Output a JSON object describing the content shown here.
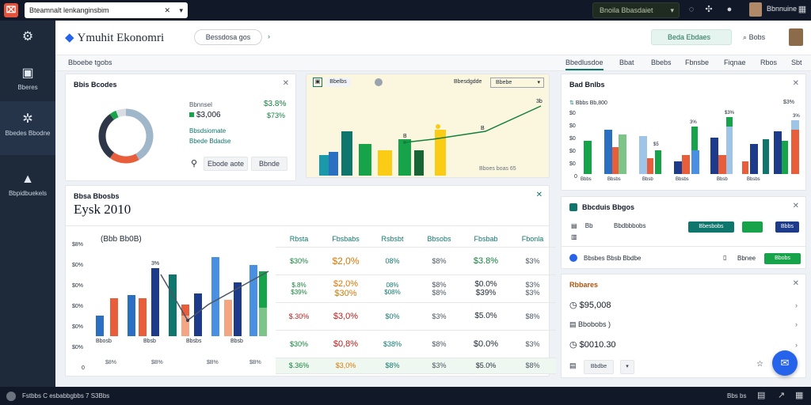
{
  "topbar": {
    "search_value": "Bteamnalt lenkanginsbim",
    "env_pill": "Bnoila Bbasdaiet",
    "user_label": "Bbnnuine"
  },
  "sidebar": {
    "items": [
      {
        "label": ""
      },
      {
        "label": "Bberes"
      },
      {
        "label": "Bbedes Bbodne"
      },
      {
        "label": "Bbpidbuekels"
      }
    ]
  },
  "header": {
    "brand": "Ymuhit Ekonomri",
    "pill": "Bessdosa gos",
    "green_button": "Beda Ebdaes",
    "search_label": "Bobs"
  },
  "crumb": "Bboebe tgobs",
  "tabs": [
    "Bbedlusdoe",
    "Bbat",
    "Bbebs",
    "Fbnsbe",
    "Fiqnae",
    "Rbos",
    "Sbt"
  ],
  "donut_card": {
    "title": "Bbis Bcodes",
    "legend": [
      "Bbnnsel",
      "$3,006",
      "Bbsdsiomate",
      "Bbede Bdadse"
    ],
    "values": [
      "$3.8%",
      "$73%"
    ],
    "button": "Ebode aote",
    "button2": "Bbnde",
    "segments": [
      {
        "value": 42,
        "color": "#9fb7c9"
      },
      {
        "value": 18,
        "color": "#e85d3a"
      },
      {
        "value": 30,
        "color": "#2d3748"
      },
      {
        "value": 4,
        "color": "#16a34a"
      },
      {
        "value": 6,
        "color": "#d9dde3"
      }
    ]
  },
  "mid_card": {
    "pill": "Bbelbs",
    "dropdown_label": "Bbesdgdde",
    "dropdown": "Bbebe",
    "peak_label": "3b",
    "labels": [
      "B",
      "B"
    ],
    "footer": "Bboes boas 65"
  },
  "big_card": {
    "title": "Bbsa Bbosbs",
    "heading": "Eysk 2010",
    "chart_title": "(Bbb Bb0B)",
    "y_ticks": [
      "$8%",
      "$0%",
      "$0%",
      "$0%",
      "$0%",
      "$0%",
      "0"
    ],
    "x_labels": [
      "Bbosb",
      "Bbsb",
      "Bbsbs",
      "Bbsb"
    ],
    "bottom_labels": [
      "$8%",
      "$B%",
      "$B%",
      "$B%"
    ],
    "peak": "3%",
    "table": {
      "headers": [
        "Rbsta",
        "Fbsbabs",
        "Rsbsbt",
        "Bbsobs",
        "Fbsbab",
        "Fbonla"
      ],
      "rows": [
        [
          "$30%",
          "$2,0%",
          "08%",
          "$8%",
          "$3.8%",
          "$3%"
        ],
        [
          "$.8%\n$39%",
          "$2,0%\n$30%",
          "08%\n$08%",
          "$8%\n$8%",
          "$0.0%\n$39%",
          "$3%\n$3%"
        ],
        [
          "$.30%",
          "$3,0%",
          "$0%",
          "$3%",
          "$5.0%",
          "$8%"
        ],
        [
          "$30%",
          "$0,8%",
          "$38%",
          "$8%",
          "$0.0%",
          "$3%"
        ],
        [
          "$.36%",
          "$3,0%",
          "$8%",
          "$3%",
          "$5.0%",
          "$8%"
        ]
      ]
    }
  },
  "bar_card": {
    "title": "Bad Bnlbs",
    "legend": "Bbbs Bb,800",
    "legend_right": "$3%",
    "y_ticks": [
      "$0",
      "$0",
      "$0",
      "$0",
      "$0",
      "0"
    ],
    "x_labels": [
      "Bbbs",
      "Bbsbs",
      "Bbsb",
      "Bbsbs",
      "Bbsb",
      "Bbsbs"
    ],
    "peaks": [
      "3%",
      "$5",
      "$3%",
      "3%"
    ]
  },
  "doc_card": {
    "title": "Bbcduis Bbgos",
    "rows": [
      "Bb",
      "Bbdbbbobs"
    ],
    "row3": "Bbsbes Bbsb Bbdbe",
    "badge_teal": "Bbesbobs",
    "badge_navy": "Bbbs",
    "right_label": "Bbnee",
    "green_btn": "Bbobs"
  },
  "list_card": {
    "title": "Rbbares",
    "items": [
      "$95,008",
      "Bbobobs )",
      "$0010.30",
      "Bbdbe"
    ]
  },
  "bottombar": {
    "left": "Fstbbs C  esbabbgbbs  7 S3Bbs",
    "right": "Bbs bs"
  }
}
